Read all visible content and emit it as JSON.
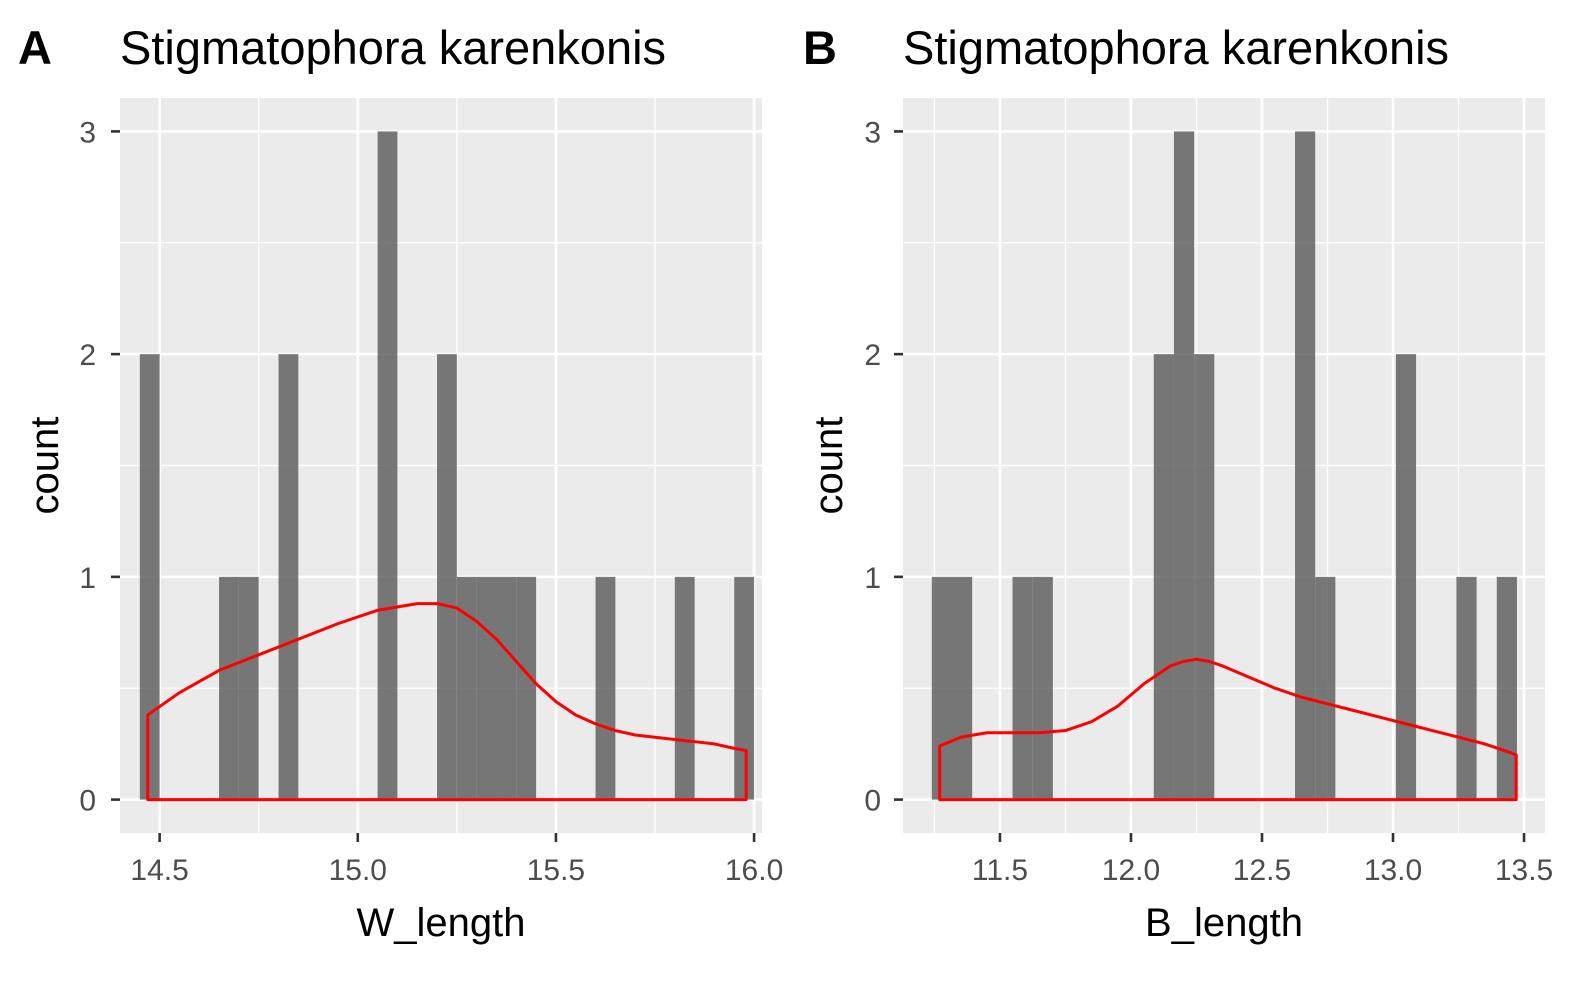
{
  "chart_data": [
    {
      "type": "histogram",
      "panel_label": "A",
      "title": "Stigmatophora karenkonis",
      "xlabel": "W_length",
      "ylabel": "count",
      "xlim": [
        14.4,
        16.02
      ],
      "ylim": [
        -0.15,
        3.15
      ],
      "xticks": [
        14.5,
        15.0,
        15.5,
        16.0
      ],
      "xtick_labels": [
        "14.5",
        "15.0",
        "15.5",
        "16.0"
      ],
      "yticks": [
        0,
        1,
        2,
        3
      ],
      "ytick_labels": [
        "0",
        "1",
        "2",
        "3"
      ],
      "grid": true,
      "bin_width": 0.05,
      "bins": [
        {
          "x0": 14.45,
          "x1": 14.5,
          "count": 2
        },
        {
          "x0": 14.65,
          "x1": 14.7,
          "count": 1
        },
        {
          "x0": 14.7,
          "x1": 14.75,
          "count": 1
        },
        {
          "x0": 14.8,
          "x1": 14.85,
          "count": 2
        },
        {
          "x0": 15.05,
          "x1": 15.1,
          "count": 3
        },
        {
          "x0": 15.2,
          "x1": 15.25,
          "count": 2
        },
        {
          "x0": 15.25,
          "x1": 15.3,
          "count": 1
        },
        {
          "x0": 15.3,
          "x1": 15.35,
          "count": 1
        },
        {
          "x0": 15.35,
          "x1": 15.4,
          "count": 1
        },
        {
          "x0": 15.4,
          "x1": 15.45,
          "count": 1
        },
        {
          "x0": 15.6,
          "x1": 15.65,
          "count": 1
        },
        {
          "x0": 15.8,
          "x1": 15.85,
          "count": 1
        },
        {
          "x0": 15.95,
          "x1": 16.0,
          "count": 1
        }
      ],
      "density": {
        "color": "#ff0000",
        "x": [
          14.47,
          14.55,
          14.65,
          14.75,
          14.85,
          14.95,
          15.05,
          15.15,
          15.2,
          15.25,
          15.3,
          15.35,
          15.4,
          15.45,
          15.5,
          15.55,
          15.6,
          15.65,
          15.7,
          15.75,
          15.8,
          15.85,
          15.9,
          15.95,
          15.98
        ],
        "y": [
          0.38,
          0.48,
          0.58,
          0.65,
          0.72,
          0.79,
          0.85,
          0.88,
          0.88,
          0.86,
          0.8,
          0.72,
          0.62,
          0.52,
          0.44,
          0.38,
          0.34,
          0.31,
          0.29,
          0.28,
          0.27,
          0.26,
          0.25,
          0.23,
          0.22
        ]
      }
    },
    {
      "type": "histogram",
      "panel_label": "B",
      "title": "Stigmatophora karenkonis",
      "xlabel": "B_length",
      "ylabel": "count",
      "xlim": [
        11.13,
        13.58
      ],
      "ylim": [
        -0.15,
        3.15
      ],
      "xticks": [
        11.5,
        12.0,
        12.5,
        13.0,
        13.5
      ],
      "xtick_labels": [
        "11.5",
        "12.0",
        "12.5",
        "13.0",
        "13.5"
      ],
      "yticks": [
        0,
        1,
        2,
        3
      ],
      "ytick_labels": [
        "0",
        "1",
        "2",
        "3"
      ],
      "grid": true,
      "bin_width": 0.077,
      "bins": [
        {
          "x0": 11.24,
          "x1": 11.317,
          "count": 1
        },
        {
          "x0": 11.317,
          "x1": 11.394,
          "count": 1
        },
        {
          "x0": 11.548,
          "x1": 11.625,
          "count": 1
        },
        {
          "x0": 11.625,
          "x1": 11.702,
          "count": 1
        },
        {
          "x0": 12.087,
          "x1": 12.164,
          "count": 2
        },
        {
          "x0": 12.164,
          "x1": 12.241,
          "count": 3
        },
        {
          "x0": 12.241,
          "x1": 12.318,
          "count": 2
        },
        {
          "x0": 12.626,
          "x1": 12.703,
          "count": 3
        },
        {
          "x0": 12.703,
          "x1": 12.78,
          "count": 1
        },
        {
          "x0": 13.011,
          "x1": 13.088,
          "count": 2
        },
        {
          "x0": 13.242,
          "x1": 13.319,
          "count": 1
        },
        {
          "x0": 13.396,
          "x1": 13.473,
          "count": 1
        }
      ],
      "density": {
        "color": "#ff0000",
        "x": [
          11.27,
          11.35,
          11.45,
          11.55,
          11.65,
          11.75,
          11.85,
          11.95,
          12.05,
          12.15,
          12.2,
          12.25,
          12.3,
          12.35,
          12.45,
          12.55,
          12.65,
          12.75,
          12.85,
          12.95,
          13.05,
          13.15,
          13.25,
          13.35,
          13.45,
          13.47
        ],
        "y": [
          0.24,
          0.28,
          0.3,
          0.3,
          0.3,
          0.31,
          0.35,
          0.42,
          0.52,
          0.6,
          0.62,
          0.63,
          0.62,
          0.6,
          0.55,
          0.5,
          0.46,
          0.43,
          0.4,
          0.37,
          0.34,
          0.31,
          0.28,
          0.25,
          0.21,
          0.2
        ]
      }
    }
  ]
}
